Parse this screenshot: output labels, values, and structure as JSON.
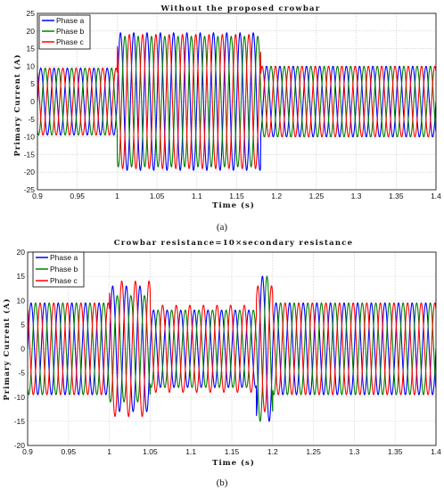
{
  "colors": {
    "phase_a": "#0000ff",
    "phase_b": "#008000",
    "phase_c": "#ff0000",
    "grid": "#c8c8c8",
    "frame": "#000000"
  },
  "chart_data": [
    {
      "type": "line",
      "panel": "(a)",
      "title": "Without the proposed crowbar",
      "xlabel": "Time (s)",
      "ylabel": "Primary Current (A)",
      "xlim": [
        0.9,
        1.4
      ],
      "ylim": [
        -25,
        25
      ],
      "xticks": [
        0.9,
        0.95,
        1.0,
        1.05,
        1.1,
        1.15,
        1.2,
        1.25,
        1.3,
        1.35,
        1.4
      ],
      "xtick_labels": [
        "0.9",
        "0.95",
        "1",
        "1.05",
        "1.1",
        "1.15",
        "1.2",
        "1.25",
        "1.3",
        "1.35",
        "1.4"
      ],
      "yticks": [
        -25,
        -20,
        -15,
        -10,
        -5,
        0,
        5,
        10,
        15,
        20,
        25
      ],
      "grid": true,
      "legend_position": "top-left",
      "frequency_hz": 60,
      "series": [
        {
          "name": "Phase a",
          "color": "#0000ff",
          "phase_deg": 0,
          "segments": [
            {
              "from": 0.9,
              "to": 1.0,
              "amplitude": 9.5
            },
            {
              "from": 1.0,
              "to": 1.18,
              "amplitude": 19.5
            },
            {
              "from": 1.18,
              "to": 1.4,
              "amplitude": 10
            }
          ]
        },
        {
          "name": "Phase b",
          "color": "#008000",
          "phase_deg": -120,
          "segments": [
            {
              "from": 0.9,
              "to": 1.0,
              "amplitude": 9.5
            },
            {
              "from": 1.0,
              "to": 1.18,
              "amplitude": 18.5
            },
            {
              "from": 1.18,
              "to": 1.4,
              "amplitude": 10
            }
          ]
        },
        {
          "name": "Phase c",
          "color": "#ff0000",
          "phase_deg": 120,
          "segments": [
            {
              "from": 0.9,
              "to": 1.0,
              "amplitude": 9.5
            },
            {
              "from": 1.0,
              "to": 1.18,
              "amplitude": 19
            },
            {
              "from": 1.18,
              "to": 1.4,
              "amplitude": 10
            }
          ]
        }
      ]
    },
    {
      "type": "line",
      "panel": "(b)",
      "title": "Crowbar resistance=10×secondary resistance",
      "xlabel": "Time (s)",
      "ylabel": "Primary Current (A)",
      "xlim": [
        0.9,
        1.4
      ],
      "ylim": [
        -20,
        20
      ],
      "xticks": [
        0.9,
        0.95,
        1.0,
        1.05,
        1.1,
        1.15,
        1.2,
        1.25,
        1.3,
        1.35,
        1.4
      ],
      "xtick_labels": [
        "0.9",
        "0.95",
        "1",
        "1.05",
        "1.1",
        "1.15",
        "1.2",
        "1.25",
        "1.3",
        "1.35",
        "1.4"
      ],
      "yticks": [
        -20,
        -15,
        -10,
        -5,
        0,
        5,
        10,
        15,
        20
      ],
      "grid": true,
      "legend_position": "top-left",
      "frequency_hz": 60,
      "series": [
        {
          "name": "Phase a",
          "color": "#0000ff",
          "phase_deg": 0,
          "segments": [
            {
              "from": 0.9,
              "to": 1.0,
              "amplitude": 9.5
            },
            {
              "from": 1.0,
              "to": 1.05,
              "amplitude": 13
            },
            {
              "from": 1.05,
              "to": 1.18,
              "amplitude": 8
            },
            {
              "from": 1.18,
              "to": 1.2,
              "amplitude": 15
            },
            {
              "from": 1.2,
              "to": 1.4,
              "amplitude": 9.5
            }
          ]
        },
        {
          "name": "Phase b",
          "color": "#008000",
          "phase_deg": -120,
          "segments": [
            {
              "from": 0.9,
              "to": 1.0,
              "amplitude": 9.5
            },
            {
              "from": 1.0,
              "to": 1.05,
              "amplitude": 11
            },
            {
              "from": 1.05,
              "to": 1.18,
              "amplitude": 8
            },
            {
              "from": 1.18,
              "to": 1.2,
              "amplitude": 15
            },
            {
              "from": 1.2,
              "to": 1.4,
              "amplitude": 9.5
            }
          ]
        },
        {
          "name": "Phase c",
          "color": "#ff0000",
          "phase_deg": 120,
          "segments": [
            {
              "from": 0.9,
              "to": 1.0,
              "amplitude": 9.5
            },
            {
              "from": 1.0,
              "to": 1.05,
              "amplitude": 14
            },
            {
              "from": 1.05,
              "to": 1.18,
              "amplitude": 9
            },
            {
              "from": 1.18,
              "to": 1.2,
              "amplitude": 13
            },
            {
              "from": 1.2,
              "to": 1.4,
              "amplitude": 9.5
            }
          ]
        }
      ]
    }
  ]
}
